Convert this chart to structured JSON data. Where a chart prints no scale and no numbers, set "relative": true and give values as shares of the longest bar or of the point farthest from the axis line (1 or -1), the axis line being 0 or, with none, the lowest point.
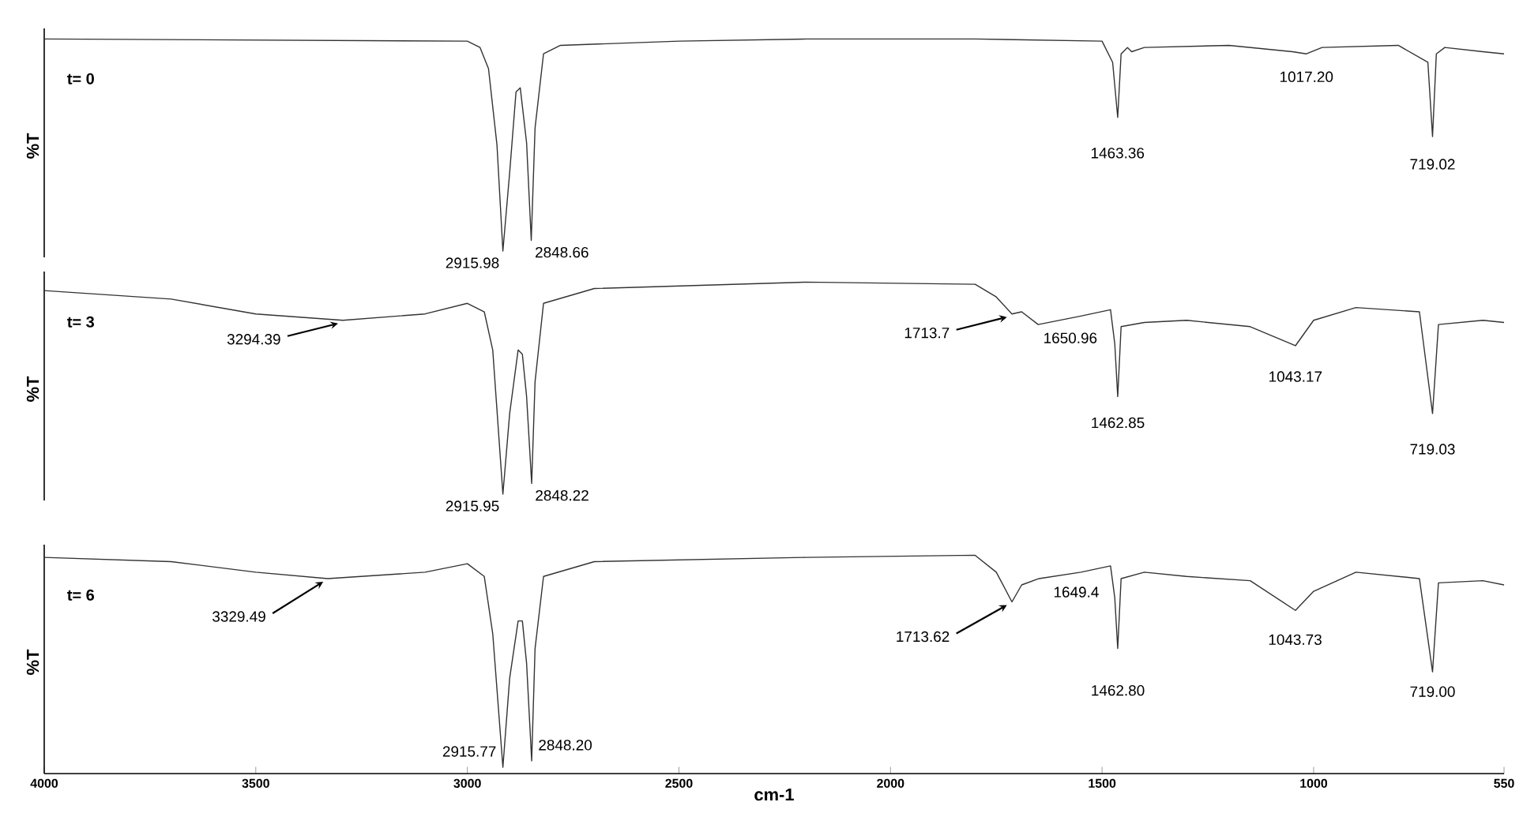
{
  "chart_data": [
    {
      "type": "line",
      "title": "t= 0",
      "ylabel": "%T",
      "relative": true,
      "xlim": [
        4000,
        550
      ],
      "tick_labels": false,
      "x": [
        4000,
        3000,
        2970,
        2950,
        2930,
        2916,
        2900,
        2885,
        2875,
        2860,
        2849,
        2840,
        2820,
        2780,
        2500,
        2200,
        1800,
        1500,
        1475,
        1463,
        1455,
        1440,
        1430,
        1400,
        1200,
        1050,
        1017,
        980,
        800,
        730,
        719,
        710,
        690,
        600,
        550
      ],
      "series": [
        {
          "color": "#333333",
          "values": [
            1.0,
            0.99,
            0.96,
            0.86,
            0.5,
            0,
            0.37,
            0.75,
            0.77,
            0.51,
            0.05,
            0.58,
            0.93,
            0.97,
            0.99,
            1.0,
            1.0,
            0.99,
            0.89,
            0.63,
            0.93,
            0.96,
            0.94,
            0.96,
            0.97,
            0.94,
            0.93,
            0.96,
            0.97,
            0.89,
            0.54,
            0.93,
            0.96,
            0.94,
            0.93
          ]
        }
      ],
      "annotations": [
        {
          "text": "2915.98",
          "x": 2915.98,
          "y": 0
        },
        {
          "text": "2848.66",
          "x": 2848.66,
          "y": 0.05
        },
        {
          "text": "1463.36",
          "x": 1463.36,
          "y": 0.63
        },
        {
          "text": "1017.20",
          "x": 1017.2,
          "y": 0.93
        },
        {
          "text": "719.02",
          "x": 719.02,
          "y": 0.54
        }
      ]
    },
    {
      "type": "line",
      "title": "t= 3",
      "ylabel": "%T",
      "relative": true,
      "xlim": [
        4000,
        550
      ],
      "tick_labels": false,
      "x": [
        4000,
        3700,
        3500,
        3294,
        3100,
        3000,
        2960,
        2940,
        2916,
        2900,
        2880,
        2870,
        2860,
        2848,
        2840,
        2820,
        2700,
        2200,
        1800,
        1750,
        1713,
        1690,
        1651,
        1550,
        1480,
        1470,
        1463,
        1455,
        1400,
        1300,
        1150,
        1043,
        1000,
        900,
        750,
        719,
        705,
        600,
        550
      ],
      "series": [
        {
          "color": "#333333",
          "values": [
            0.96,
            0.92,
            0.85,
            0.82,
            0.85,
            0.9,
            0.86,
            0.68,
            0,
            0.38,
            0.68,
            0.66,
            0.46,
            0.05,
            0.53,
            0.9,
            0.97,
            1.0,
            0.99,
            0.93,
            0.85,
            0.86,
            0.8,
            0.84,
            0.87,
            0.71,
            0.46,
            0.79,
            0.81,
            0.82,
            0.79,
            0.7,
            0.82,
            0.88,
            0.86,
            0.38,
            0.8,
            0.82,
            0.81
          ]
        }
      ],
      "annotations": [
        {
          "text": "3294.39",
          "x": 3294.39,
          "y": 0.82
        },
        {
          "text": "2915.95",
          "x": 2915.95,
          "y": 0
        },
        {
          "text": "2848.22",
          "x": 2848.22,
          "y": 0.05
        },
        {
          "text": "1713.7",
          "x": 1713.7,
          "y": 0.85
        },
        {
          "text": "1650.96",
          "x": 1650.96,
          "y": 0.8
        },
        {
          "text": "1462.85",
          "x": 1462.85,
          "y": 0.46
        },
        {
          "text": "1043.17",
          "x": 1043.17,
          "y": 0.7
        },
        {
          "text": "719.03",
          "x": 719.03,
          "y": 0.38
        }
      ]
    },
    {
      "type": "line",
      "title": "t= 6",
      "ylabel": "%T",
      "xlabel": "cm-1",
      "relative": true,
      "xlim": [
        4000,
        550
      ],
      "xticks": [
        4000,
        3500,
        3000,
        2500,
        2000,
        1500,
        1000,
        550
      ],
      "x": [
        4000,
        3700,
        3500,
        3330,
        3100,
        3000,
        2960,
        2940,
        2916,
        2900,
        2880,
        2870,
        2860,
        2848,
        2840,
        2820,
        2700,
        2200,
        1800,
        1750,
        1713,
        1690,
        1649,
        1550,
        1480,
        1470,
        1463,
        1455,
        1400,
        1300,
        1150,
        1043,
        1000,
        900,
        750,
        719,
        705,
        600,
        550
      ],
      "series": [
        {
          "color": "#333333",
          "values": [
            0.99,
            0.97,
            0.92,
            0.89,
            0.92,
            0.96,
            0.9,
            0.63,
            0,
            0.42,
            0.69,
            0.69,
            0.49,
            0.03,
            0.56,
            0.9,
            0.97,
            0.99,
            1.0,
            0.92,
            0.78,
            0.86,
            0.89,
            0.92,
            0.95,
            0.8,
            0.56,
            0.89,
            0.92,
            0.9,
            0.88,
            0.74,
            0.83,
            0.92,
            0.89,
            0.45,
            0.87,
            0.88,
            0.86
          ]
        }
      ],
      "annotations": [
        {
          "text": "3329.49",
          "x": 3329.49,
          "y": 0.89
        },
        {
          "text": "2915.77",
          "x": 2915.77,
          "y": 0
        },
        {
          "text": "2848.20",
          "x": 2848.2,
          "y": 0.03
        },
        {
          "text": "1713.62",
          "x": 1713.62,
          "y": 0.78
        },
        {
          "text": "1649.4",
          "x": 1649.4,
          "y": 0.89
        },
        {
          "text": "1462.80",
          "x": 1462.8,
          "y": 0.56
        },
        {
          "text": "1043.73",
          "x": 1043.73,
          "y": 0.74
        },
        {
          "text": "719.00",
          "x": 719.0,
          "y": 0.45
        }
      ]
    }
  ]
}
